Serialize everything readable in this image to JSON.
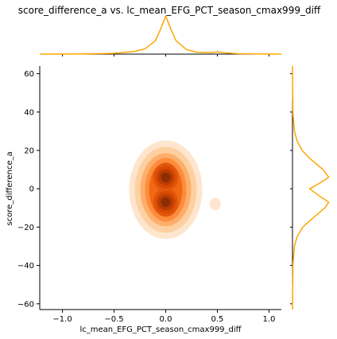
{
  "chart_data": {
    "type": "kde-joint",
    "title": "score_difference_a vs. lc_mean_EFG_PCT_season_cmax999_diff",
    "xlabel": "lc_mean_EFG_PCT_season_cmax999_diff",
    "ylabel": "score_difference_a",
    "xlim": [
      -1.22,
      1.12
    ],
    "ylim": [
      -63,
      64
    ],
    "x_ticks": [
      -1.0,
      -0.5,
      0.0,
      0.5,
      1.0
    ],
    "x_tick_labels": [
      "−1.0",
      "−0.5",
      "0.0",
      "0.5",
      "1.0"
    ],
    "y_ticks": [
      -60,
      -40,
      -20,
      0,
      20,
      40,
      60
    ],
    "y_tick_labels": [
      "−60",
      "−40",
      "−20",
      "0",
      "20",
      "40",
      "60"
    ],
    "joint_kde": {
      "colormap": "Oranges",
      "levels": 9,
      "modes": [
        {
          "x": 0.0,
          "y": 6
        },
        {
          "x": 0.0,
          "y": -7
        }
      ],
      "minor_bump": {
        "x": 0.48,
        "y": -8
      }
    },
    "marginal_x": {
      "color": "#ffa500",
      "x": [
        -1.22,
        -0.8,
        -0.5,
        -0.3,
        -0.2,
        -0.1,
        -0.05,
        0.0,
        0.05,
        0.1,
        0.2,
        0.3,
        0.45,
        0.5,
        0.55,
        0.7,
        1.12
      ],
      "density": [
        0.0,
        0.005,
        0.02,
        0.07,
        0.14,
        0.35,
        0.65,
        1.0,
        0.65,
        0.35,
        0.12,
        0.05,
        0.04,
        0.06,
        0.04,
        0.01,
        0.0
      ]
    },
    "marginal_y": {
      "color": "#ffa500",
      "y": [
        -63,
        -40,
        -30,
        -25,
        -20,
        -15,
        -10,
        -7,
        -4,
        0,
        3,
        6,
        10,
        15,
        20,
        25,
        30,
        40,
        64
      ],
      "density": [
        0.0,
        0.01,
        0.05,
        0.12,
        0.27,
        0.55,
        0.85,
        0.95,
        0.72,
        0.45,
        0.72,
        0.95,
        0.8,
        0.5,
        0.25,
        0.12,
        0.05,
        0.01,
        0.0
      ]
    },
    "grid": false
  }
}
